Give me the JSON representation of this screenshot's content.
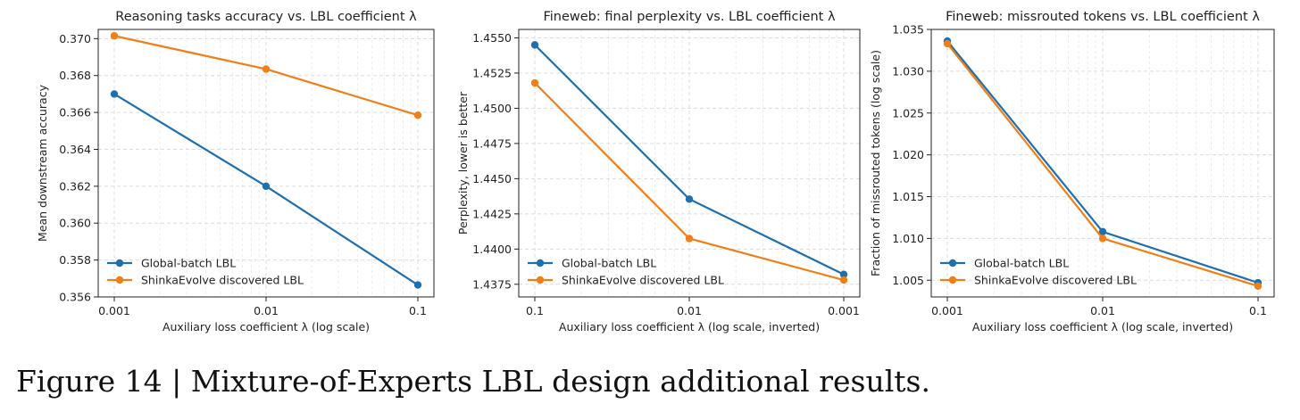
{
  "caption": "Figure 14 | Mixture-of-Experts LBL design additional results.",
  "colors": {
    "global": "#1f6fae",
    "shinka": "#f07f1a"
  },
  "chart_data": [
    {
      "type": "line",
      "title": "Reasoning tasks accuracy vs. LBL coefficient λ",
      "xlabel": "Auxiliary loss coefficient λ (log scale)",
      "ylabel": "Mean downstream accuracy",
      "categories": [
        "0.001",
        "0.01",
        "0.1"
      ],
      "ylim": [
        0.356,
        0.3705
      ],
      "yticks": [
        "0.356",
        "0.358",
        "0.360",
        "0.362",
        "0.364",
        "0.366",
        "0.368",
        "0.370"
      ],
      "legend": "lower-left",
      "series": [
        {
          "name": "Global-batch LBL",
          "color": "#1f6fae",
          "values": [
            0.367,
            0.362,
            0.35665
          ]
        },
        {
          "name": "ShinkaEvolve discovered LBL",
          "color": "#f07f1a",
          "values": [
            0.37015,
            0.36835,
            0.36585
          ]
        }
      ]
    },
    {
      "type": "line",
      "title": "Fineweb: final perplexity vs. LBL coefficient λ",
      "xlabel": "Auxiliary loss coefficient λ (log scale, inverted)",
      "ylabel": "Perplexity, lower is better",
      "categories": [
        "0.1",
        "0.01",
        "0.001"
      ],
      "ylim": [
        1.4366,
        1.4556
      ],
      "yticks": [
        "1.4375",
        "1.4400",
        "1.4425",
        "1.4450",
        "1.4475",
        "1.4500",
        "1.4525",
        "1.4550"
      ],
      "legend": "lower-left",
      "series": [
        {
          "name": "Global-batch LBL",
          "color": "#1f6fae",
          "values": [
            1.4545,
            1.44355,
            1.4382
          ]
        },
        {
          "name": "ShinkaEvolve discovered LBL",
          "color": "#f07f1a",
          "values": [
            1.4518,
            1.44075,
            1.4378
          ]
        }
      ]
    },
    {
      "type": "line",
      "title": "Fineweb: missrouted tokens vs. LBL coefficient λ",
      "xlabel": "Auxiliary loss coefficient λ (log scale, inverted)",
      "ylabel": "Fraction of missrouted tokens (log scale)",
      "categories": [
        "0.001",
        "0.01",
        "0.1"
      ],
      "ylim": [
        1.003,
        1.035
      ],
      "yticks": [
        "1.005",
        "1.010",
        "1.015",
        "1.020",
        "1.025",
        "1.030",
        "1.035"
      ],
      "legend": "lower-left",
      "series": [
        {
          "name": "Global-batch LBL",
          "color": "#1f6fae",
          "values": [
            1.0336,
            1.0108,
            1.0047
          ]
        },
        {
          "name": "ShinkaEvolve discovered LBL",
          "color": "#f07f1a",
          "values": [
            1.0333,
            1.01,
            1.0043
          ]
        }
      ]
    }
  ]
}
